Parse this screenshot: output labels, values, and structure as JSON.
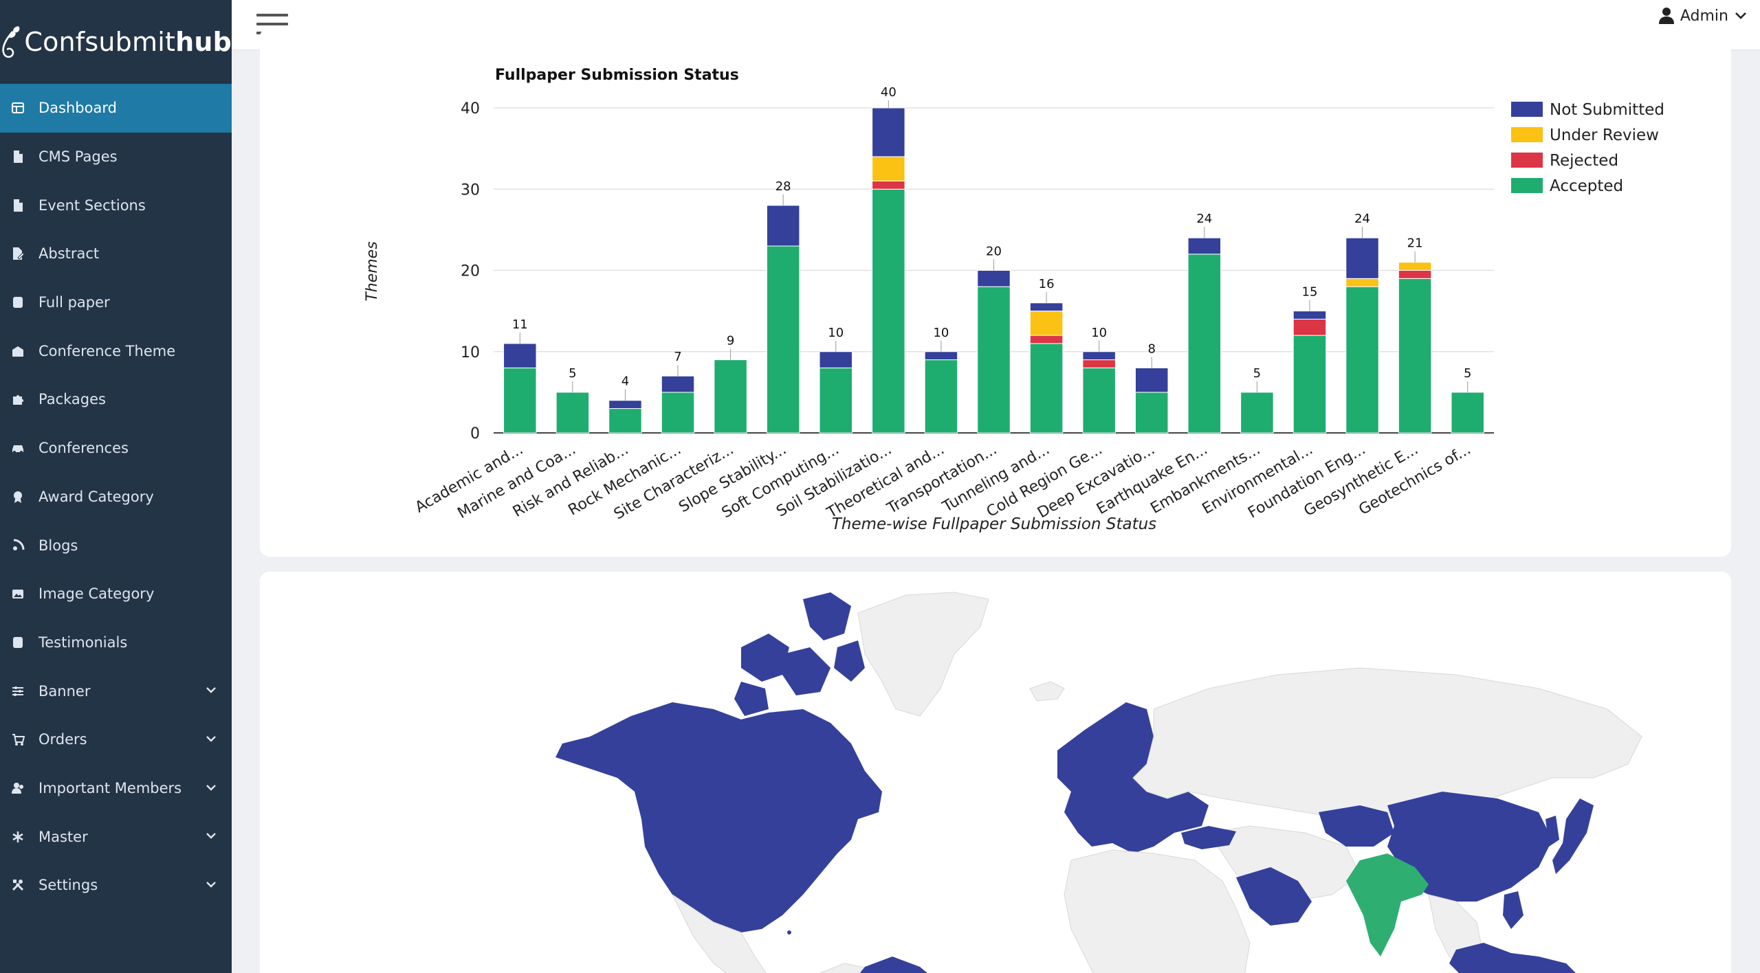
{
  "brand": {
    "name_regular": "Confsubmit",
    "name_bold": "hub"
  },
  "sidebar": {
    "items": [
      {
        "label": "Dashboard",
        "icon": "dashboard-icon",
        "active": true,
        "expandable": false
      },
      {
        "label": "CMS Pages",
        "icon": "file-icon",
        "active": false,
        "expandable": false
      },
      {
        "label": "Event Sections",
        "icon": "file-icon",
        "active": false,
        "expandable": false
      },
      {
        "label": "Abstract",
        "icon": "file-edit-icon",
        "active": false,
        "expandable": false
      },
      {
        "label": "Full paper",
        "icon": "document-icon",
        "active": false,
        "expandable": false
      },
      {
        "label": "Conference Theme",
        "icon": "building-icon",
        "active": false,
        "expandable": false
      },
      {
        "label": "Packages",
        "icon": "puzzle-icon",
        "active": false,
        "expandable": false
      },
      {
        "label": "Conferences",
        "icon": "car-icon",
        "active": false,
        "expandable": false
      },
      {
        "label": "Award Category",
        "icon": "award-icon",
        "active": false,
        "expandable": false
      },
      {
        "label": "Blogs",
        "icon": "blog-icon",
        "active": false,
        "expandable": false
      },
      {
        "label": "Image Category",
        "icon": "image-icon",
        "active": false,
        "expandable": false
      },
      {
        "label": "Testimonials",
        "icon": "quote-icon",
        "active": false,
        "expandable": false
      },
      {
        "label": "Banner",
        "icon": "sliders-icon",
        "active": false,
        "expandable": true
      },
      {
        "label": "Orders",
        "icon": "cart-icon",
        "active": false,
        "expandable": true
      },
      {
        "label": "Important Members",
        "icon": "users-icon",
        "active": false,
        "expandable": true
      },
      {
        "label": "Master",
        "icon": "asterisk-icon",
        "active": false,
        "expandable": true
      },
      {
        "label": "Settings",
        "icon": "tools-icon",
        "active": false,
        "expandable": true
      }
    ]
  },
  "topbar": {
    "user_label": "Admin"
  },
  "colors": {
    "not_submitted": "#34409a",
    "under_review": "#fbc113",
    "rejected": "#dc3545",
    "accepted": "#1fad6f",
    "map_highlight": "#34409a",
    "map_india": "#2fae72",
    "map_base": "#efefef"
  },
  "chart_data": {
    "type": "bar",
    "stacked": true,
    "title": "Fullpaper Submission Status",
    "xlabel": "Theme-wise Fullpaper Submission Status",
    "ylabel": "Themes",
    "ylim": [
      0,
      40
    ],
    "yticks": [
      0,
      10,
      20,
      30,
      40
    ],
    "grid": true,
    "legend_position": "right",
    "categories": [
      "Academic and...",
      "Marine and Coa...",
      "Risk and Reliab...",
      "Rock Mechanic...",
      "Site Characteriz...",
      "Slope Stability...",
      "Soft Computing...",
      "Soil Stabilizatio...",
      "Theoretical and...",
      "Transportation...",
      "Tunneling and...",
      "Cold Region Ge...",
      "Deep Excavatio...",
      "Earthquake En...",
      "Embankments...",
      "Environmental...",
      "Foundation Eng...",
      "Geosynthetic E...",
      "Geotechnics of..."
    ],
    "totals": [
      "11",
      "5",
      "4",
      "7",
      "9",
      "28",
      "10",
      "40",
      "10",
      "20",
      "16",
      "10",
      "8",
      "24",
      "5",
      "15",
      "24",
      "21",
      "5"
    ],
    "series": [
      {
        "name": "Accepted",
        "color_key": "accepted",
        "values": [
          8,
          5,
          3,
          5,
          9,
          23,
          8,
          30,
          9,
          18,
          11,
          8,
          5,
          22,
          5,
          12,
          18,
          19,
          5
        ]
      },
      {
        "name": "Rejected",
        "color_key": "rejected",
        "values": [
          0,
          0,
          0,
          0,
          0,
          0,
          0,
          1,
          0,
          0,
          1,
          1,
          0,
          0,
          0,
          2,
          0,
          1,
          0
        ]
      },
      {
        "name": "Under Review",
        "color_key": "under_review",
        "values": [
          0,
          0,
          0,
          0,
          0,
          0,
          0,
          3,
          0,
          0,
          3,
          0,
          0,
          0,
          0,
          0,
          1,
          1,
          0
        ]
      },
      {
        "name": "Not Submitted",
        "color_key": "not_submitted",
        "values": [
          3,
          0,
          1,
          2,
          0,
          5,
          2,
          6,
          1,
          2,
          1,
          1,
          3,
          2,
          0,
          1,
          5,
          0,
          0
        ]
      }
    ],
    "legend_order": [
      "Not Submitted",
      "Under Review",
      "Rejected",
      "Accepted"
    ]
  }
}
